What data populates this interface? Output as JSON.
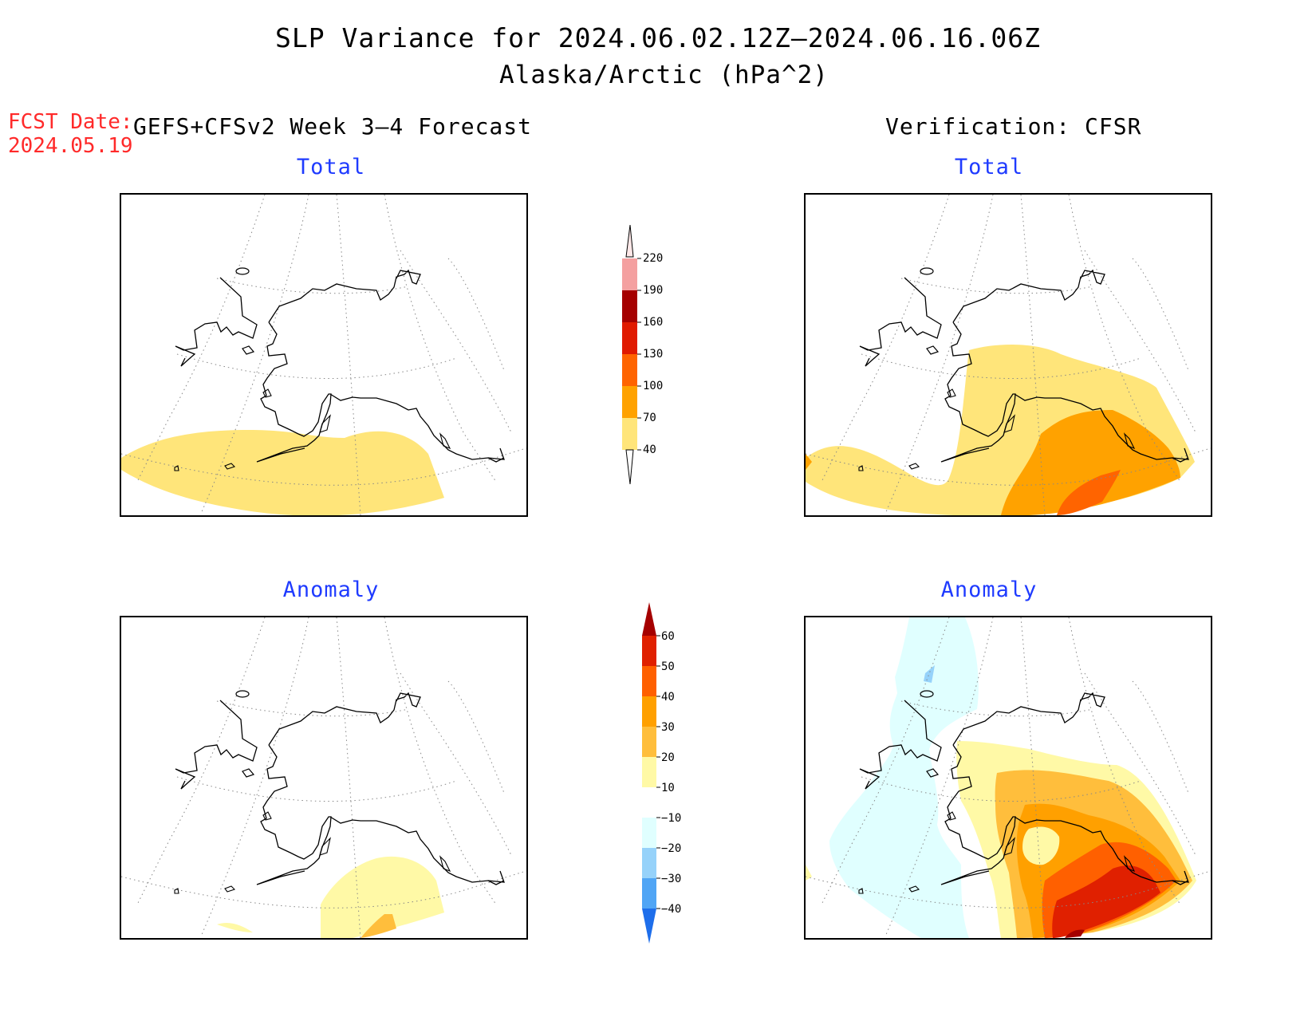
{
  "title": "SLP Variance for 2024.06.02.12Z–2024.06.16.06Z",
  "subtitle": "Alaska/Arctic (hPa^2)",
  "fcst_date": {
    "label": "FCST Date:",
    "value": "2024.05.19"
  },
  "left_header": "GEFS+CFSv2 Week 3–4 Forecast",
  "right_header": "Verification: CFSR",
  "panels": {
    "forecast_total_label": "Total",
    "verification_total_label": "Total",
    "forecast_anomaly_label": "Anomaly",
    "verification_anomaly_label": "Anomaly"
  },
  "colors": {
    "level_40_70": "#ffe57a",
    "level_70_100": "#ffa200",
    "level_100_130": "#ff6400",
    "level_130_160": "#e01a00",
    "level_160_190": "#a50000",
    "level_190_220": "#f4a0a0",
    "level_gt_220": "#fde8e8",
    "anom_10_20": "#fff9a6",
    "anom_20_30": "#ffbe3c",
    "anom_30_40": "#ffa000",
    "anom_40_50": "#ff6000",
    "anom_50_60": "#e02000",
    "anom_gt_60": "#a50000",
    "anom_m10_m20": "#e0ffff",
    "anom_m20_m30": "#96d2fa",
    "anom_m30_m40": "#50a5f5",
    "anom_lt_m40": "#1e6eeb"
  },
  "total_colorbar": {
    "ticks": [
      "40",
      "70",
      "100",
      "130",
      "160",
      "190",
      "220"
    ]
  },
  "anomaly_colorbar": {
    "ticks": [
      "60",
      "50",
      "40",
      "30",
      "20",
      "10",
      "−10",
      "−20",
      "−30",
      "−40"
    ]
  },
  "chart_data": {
    "type": "map",
    "region": "Alaska/Arctic",
    "variable": "SLP Variance",
    "units": "hPa^2",
    "panels": [
      {
        "source": "GEFS+CFSv2 Week 3–4 Forecast",
        "field": "Total",
        "max_class": "40–70"
      },
      {
        "source": "Verification: CFSR",
        "field": "Total",
        "max_class": "100–130"
      },
      {
        "source": "GEFS+CFSv2 Week 3–4 Forecast",
        "field": "Anomaly",
        "max_class": "20–30"
      },
      {
        "source": "Verification: CFSR",
        "field": "Anomaly",
        "max_class": ">60",
        "min_class": "−20–−30"
      }
    ]
  }
}
